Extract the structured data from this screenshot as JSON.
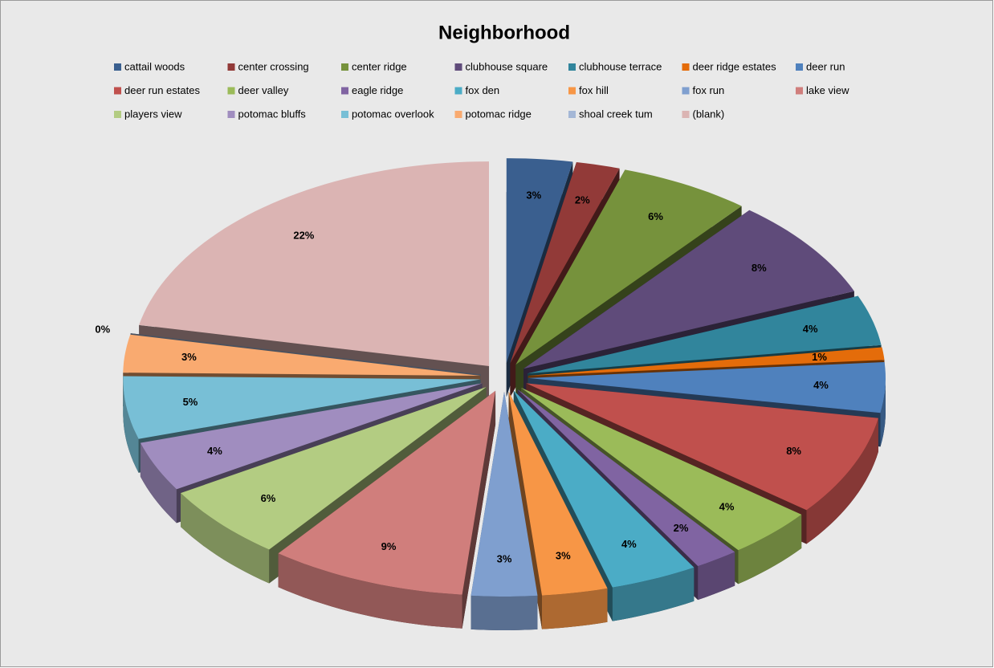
{
  "chart_data": {
    "type": "pie",
    "title": "Neighborhood",
    "categories": [
      "cattail woods",
      "center crossing",
      "center ridge",
      "clubhouse square",
      "clubhouse terrace",
      "deer ridge estates",
      "deer run",
      "deer run estates",
      "deer valley",
      "eagle ridge",
      "fox den",
      "fox hill",
      "fox run",
      "lake view",
      "players view",
      "potomac bluffs",
      "potomac overlook",
      "potomac ridge",
      "shoal creek tum",
      "(blank)"
    ],
    "values": [
      3,
      2,
      6,
      8,
      4,
      1,
      4,
      8,
      4,
      2,
      4,
      3,
      3,
      9,
      6,
      4,
      5,
      3,
      0,
      22
    ],
    "value_labels": [
      "3%",
      "2%",
      "6%",
      "8%",
      "4%",
      "1%",
      "4%",
      "8%",
      "4%",
      "2%",
      "4%",
      "3%",
      "3%",
      "9%",
      "6%",
      "4%",
      "5%",
      "3%",
      "0%",
      "22%"
    ],
    "colors": [
      "#3a5f8f",
      "#923a38",
      "#76923c",
      "#5f4b7a",
      "#31859c",
      "#e46c0a",
      "#4f81bd",
      "#c0504d",
      "#9bbb59",
      "#8064a2",
      "#4bacc6",
      "#f79646",
      "#7f9fcf",
      "#d07e7c",
      "#b3cc82",
      "#a08dbf",
      "#78bfd6",
      "#f9aa70",
      "#a4b7d6",
      "#dbb4b3"
    ],
    "legend": "top"
  }
}
